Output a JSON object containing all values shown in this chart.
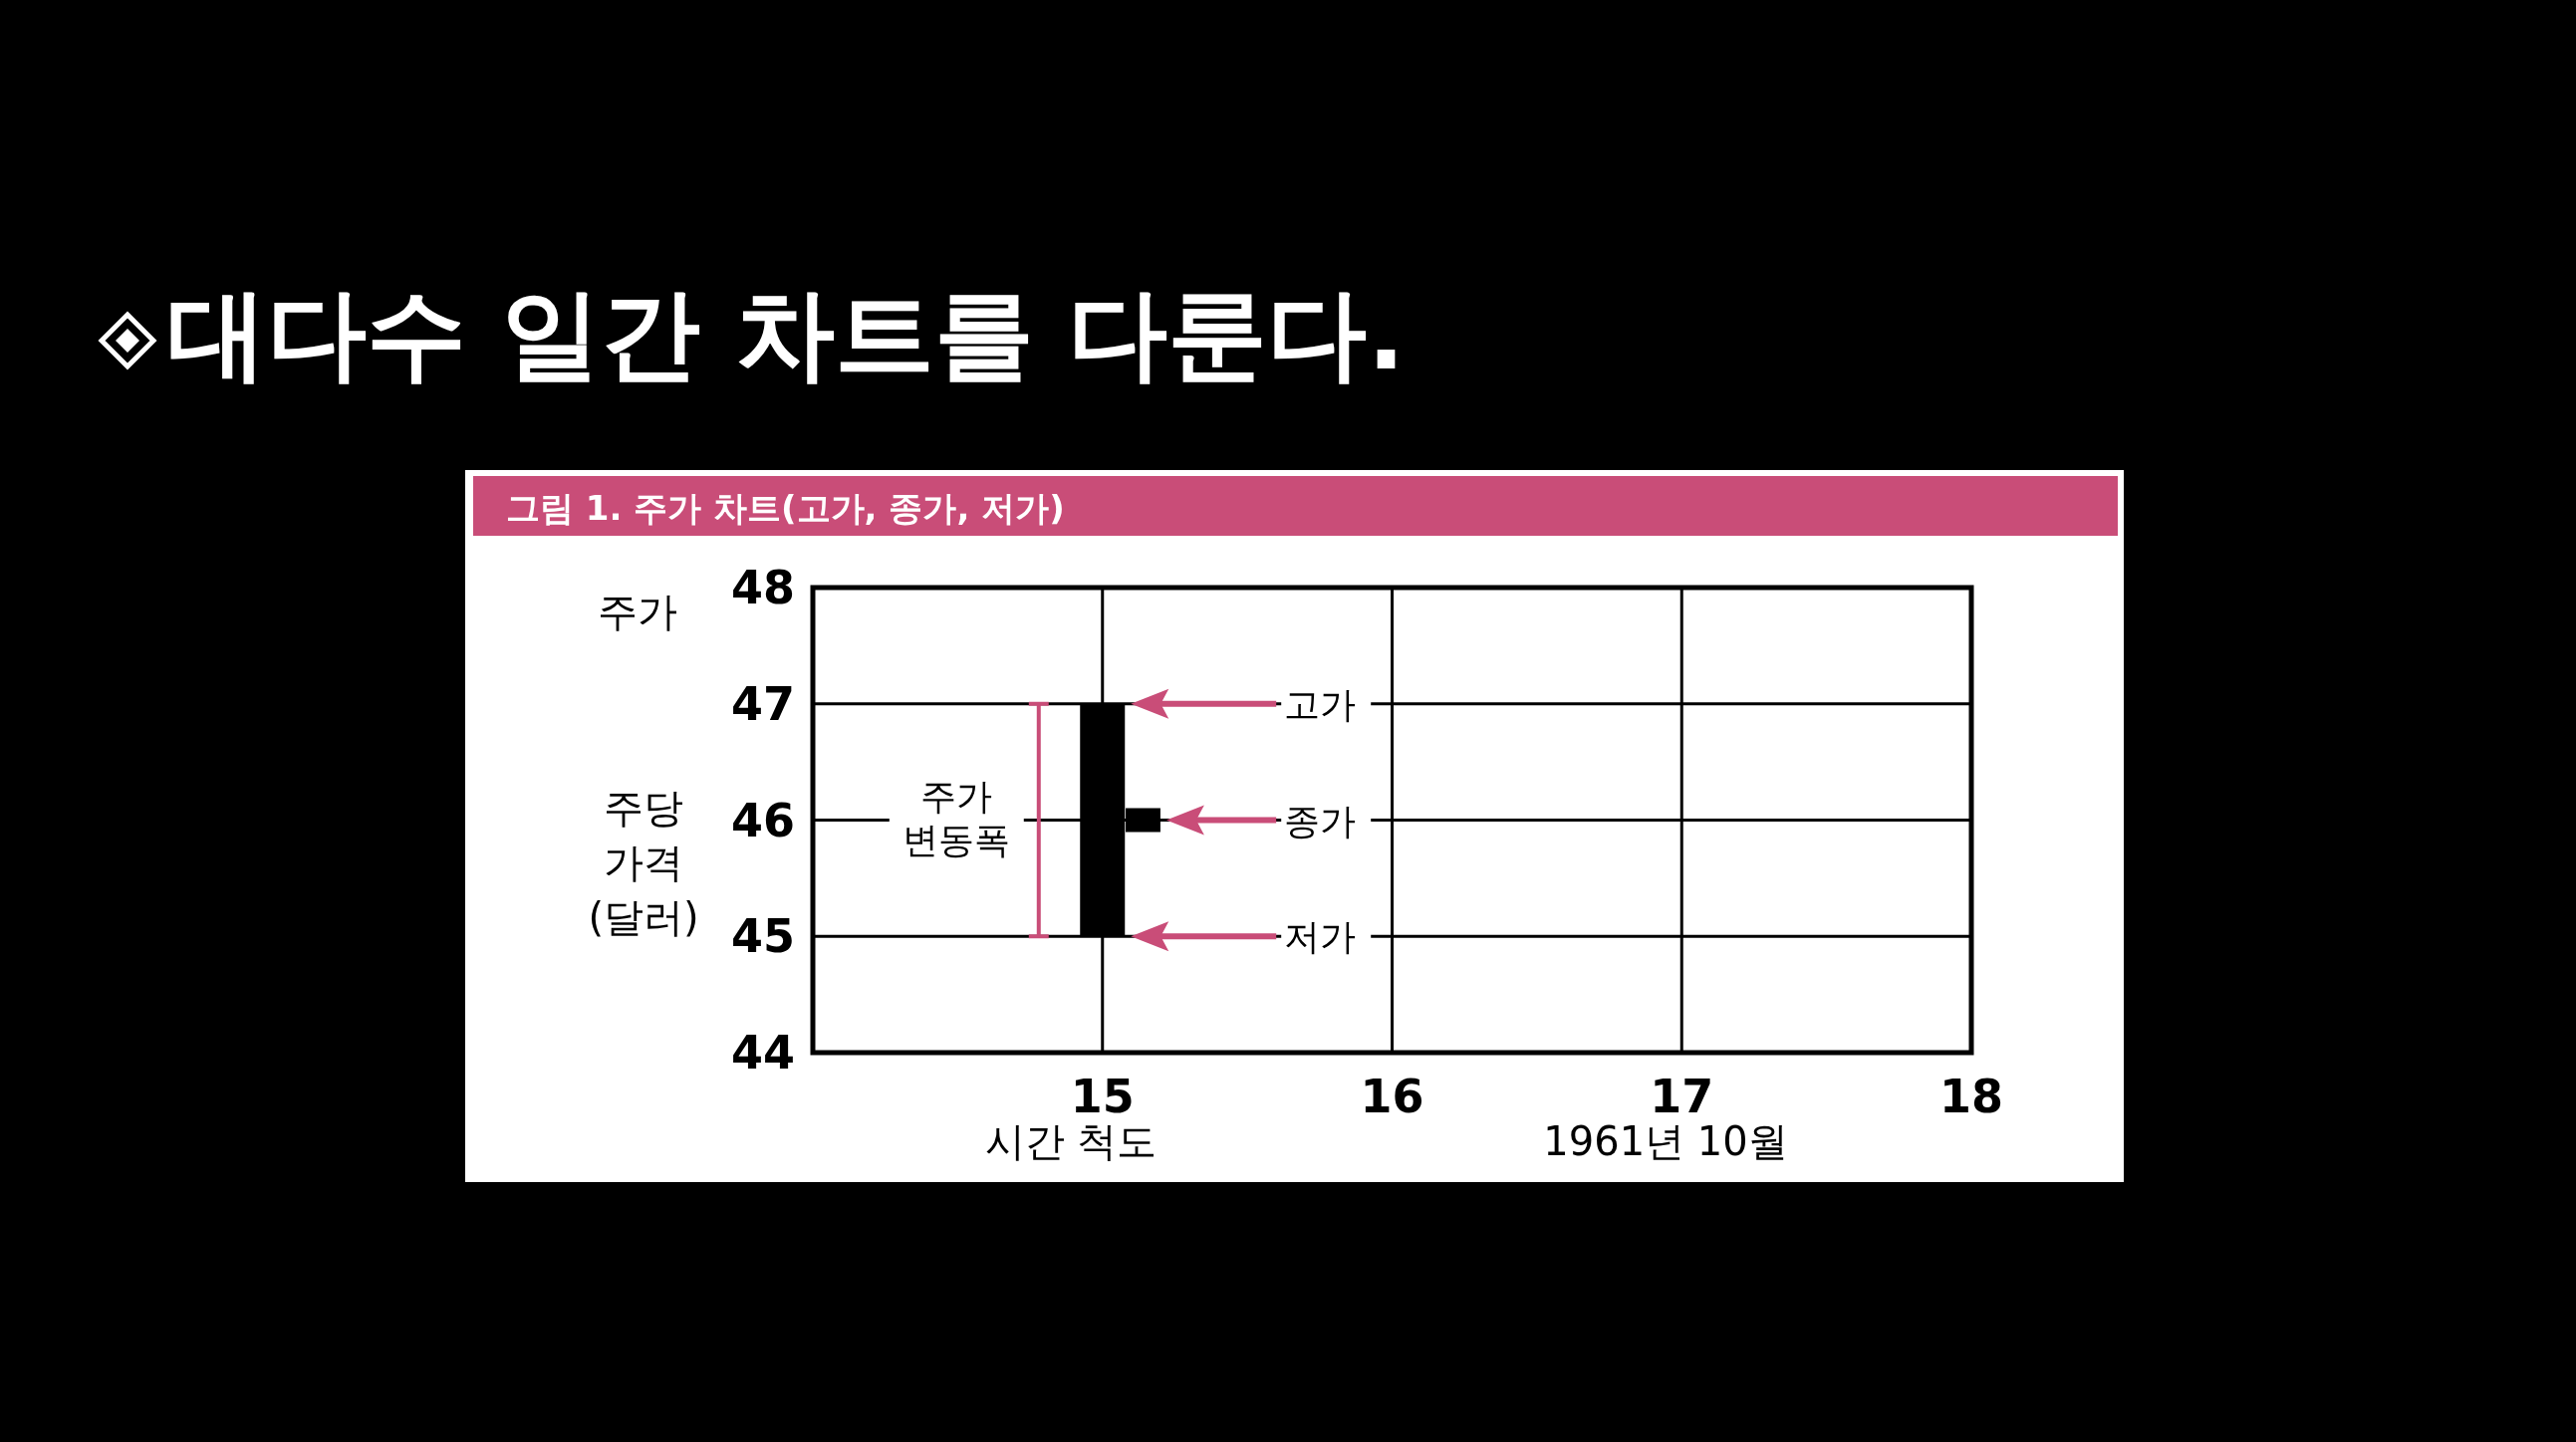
{
  "chart_data": {
    "type": "bar",
    "title": "대다수 일간 차트를 다룬다.",
    "subtitle": "그림 1. 주가 차트(고가, 종가, 저가)",
    "ylabel": "주당 가격 (달러)",
    "xlabel": "시간 척도",
    "series": [
      {
        "x": [
          15
        ],
        "base": [
          45
        ],
        "values": [
          2
        ],
        "color": "#000000"
      },
      {
        "type": "line",
        "x": [
          15.08,
          15.2
        ],
        "values": [
          46,
          46
        ],
        "color": "#000000"
      }
    ],
    "xlim": [
      14,
      18
    ],
    "xticks": [
      15,
      16,
      17,
      18
    ],
    "ylim": [
      44,
      48
    ],
    "yticks": [
      44,
      45,
      46,
      47,
      48
    ],
    "grid": true,
    "annotations": [
      "주가",
      "주가 변동폭",
      "1961년 10월",
      "고가",
      "종가",
      "저가"
    ]
  }
}
